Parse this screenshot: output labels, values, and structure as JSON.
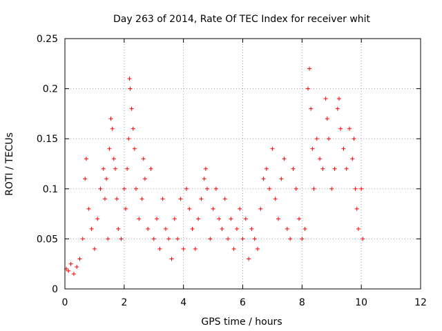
{
  "chart_data": {
    "type": "scatter",
    "title": "Day 263 of 2014, Rate Of TEC Index for receiver whit",
    "xlabel": "GPS time / hours",
    "ylabel": "ROTI / TECUs",
    "xlim": [
      0,
      12
    ],
    "ylim": [
      0,
      0.25
    ],
    "xticks": [
      0,
      2,
      4,
      6,
      8,
      10,
      12
    ],
    "yticks": [
      0,
      0.05,
      0.1,
      0.15,
      0.2,
      0.25
    ],
    "xtick_labels": [
      "0",
      "2",
      "4",
      "6",
      "8",
      "10",
      "12"
    ],
    "ytick_labels": [
      "0",
      "0.05",
      "0.1",
      "0.15",
      "0.2",
      "0.25"
    ],
    "grid": true,
    "marker": "+",
    "color": "#ff0000",
    "series": [
      {
        "name": "ROTI",
        "x": [
          0.05,
          0.12,
          0.2,
          0.3,
          0.4,
          0.5,
          0.6,
          0.68,
          0.72,
          0.8,
          0.9,
          1.0,
          1.1,
          1.2,
          1.3,
          1.35,
          1.4,
          1.45,
          1.5,
          1.55,
          1.6,
          1.65,
          1.7,
          1.75,
          1.8,
          1.9,
          2.0,
          2.05,
          2.1,
          2.15,
          2.18,
          2.2,
          2.25,
          2.3,
          2.35,
          2.4,
          2.5,
          2.6,
          2.65,
          2.7,
          2.8,
          2.9,
          3.0,
          3.1,
          3.2,
          3.3,
          3.4,
          3.5,
          3.6,
          3.7,
          3.8,
          3.9,
          4.0,
          4.1,
          4.2,
          4.3,
          4.4,
          4.5,
          4.6,
          4.7,
          4.75,
          4.8,
          4.9,
          5.0,
          5.1,
          5.2,
          5.3,
          5.4,
          5.5,
          5.6,
          5.7,
          5.8,
          5.9,
          6.0,
          6.1,
          6.2,
          6.3,
          6.4,
          6.5,
          6.6,
          6.7,
          6.8,
          6.9,
          7.0,
          7.1,
          7.2,
          7.3,
          7.4,
          7.5,
          7.6,
          7.7,
          7.8,
          7.9,
          8.0,
          8.1,
          8.2,
          8.25,
          8.3,
          8.35,
          8.4,
          8.5,
          8.6,
          8.7,
          8.8,
          8.85,
          8.9,
          9.0,
          9.1,
          9.2,
          9.25,
          9.3,
          9.4,
          9.5,
          9.6,
          9.7,
          9.75,
          9.8,
          9.85,
          9.9,
          10.0,
          10.05
        ],
        "y": [
          0.02,
          0.018,
          0.025,
          0.015,
          0.022,
          0.03,
          0.05,
          0.11,
          0.13,
          0.08,
          0.06,
          0.04,
          0.07,
          0.1,
          0.12,
          0.09,
          0.11,
          0.05,
          0.14,
          0.17,
          0.16,
          0.13,
          0.12,
          0.09,
          0.06,
          0.05,
          0.1,
          0.08,
          0.12,
          0.15,
          0.21,
          0.2,
          0.18,
          0.16,
          0.14,
          0.1,
          0.07,
          0.09,
          0.13,
          0.11,
          0.06,
          0.12,
          0.05,
          0.07,
          0.04,
          0.09,
          0.06,
          0.05,
          0.03,
          0.07,
          0.05,
          0.09,
          0.04,
          0.1,
          0.08,
          0.06,
          0.04,
          0.07,
          0.09,
          0.11,
          0.12,
          0.1,
          0.05,
          0.08,
          0.1,
          0.07,
          0.06,
          0.09,
          0.05,
          0.07,
          0.04,
          0.06,
          0.08,
          0.05,
          0.07,
          0.03,
          0.06,
          0.05,
          0.04,
          0.08,
          0.11,
          0.12,
          0.1,
          0.14,
          0.09,
          0.07,
          0.11,
          0.13,
          0.06,
          0.05,
          0.12,
          0.1,
          0.07,
          0.05,
          0.06,
          0.2,
          0.22,
          0.18,
          0.14,
          0.1,
          0.15,
          0.13,
          0.12,
          0.19,
          0.17,
          0.15,
          0.1,
          0.12,
          0.18,
          0.19,
          0.16,
          0.14,
          0.12,
          0.16,
          0.13,
          0.15,
          0.1,
          0.08,
          0.06,
          0.1,
          0.05
        ]
      }
    ]
  }
}
